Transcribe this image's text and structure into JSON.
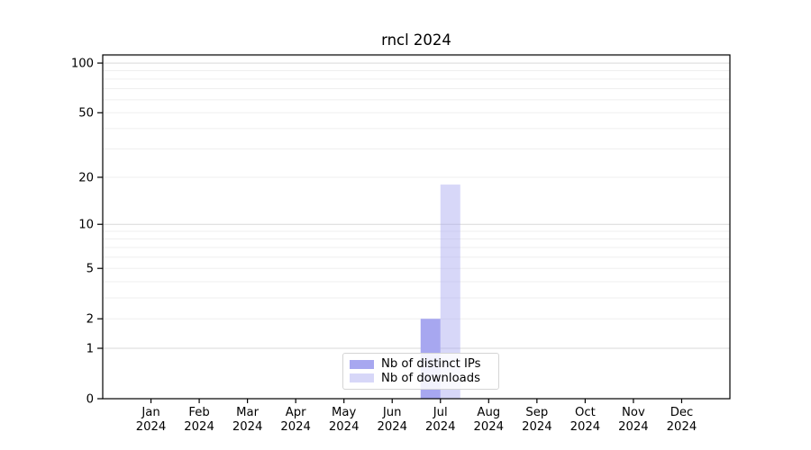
{
  "chart_data": {
    "type": "bar",
    "title": "rncl 2024",
    "categories": [
      "Jan",
      "Feb",
      "Mar",
      "Apr",
      "May",
      "Jun",
      "Jul",
      "Aug",
      "Sep",
      "Oct",
      "Nov",
      "Dec"
    ],
    "year": "2024",
    "series": [
      {
        "name": "Nb of distinct IPs",
        "values": [
          0,
          0,
          0,
          0,
          0,
          0,
          2,
          0,
          0,
          0,
          0,
          0
        ],
        "color": "#a7a7f0",
        "opacity": 1
      },
      {
        "name": "Nb of downloads",
        "values": [
          0,
          0,
          0,
          0,
          0,
          0,
          18,
          0,
          0,
          0,
          0,
          0
        ],
        "color": "#a7a7f0",
        "opacity": 0.45
      }
    ],
    "yscale": "log1p",
    "yticks": [
      0,
      1,
      2,
      5,
      10,
      20,
      50,
      100
    ],
    "ytick_labels": [
      "0",
      "1",
      "2",
      "5",
      "10",
      "20",
      "50",
      "100"
    ],
    "major_grid_values": [
      1,
      10,
      100
    ],
    "ylim": [
      0,
      112
    ],
    "xlabel": "",
    "ylabel": "",
    "grid": true,
    "legend_position": "bottom-center",
    "colors": {
      "bar_solid": "#a7a7f0",
      "bar_light": "#d8d8f7",
      "grid_minor": "#efefef",
      "grid_major": "#d9d9d9",
      "axis": "#000000"
    }
  }
}
